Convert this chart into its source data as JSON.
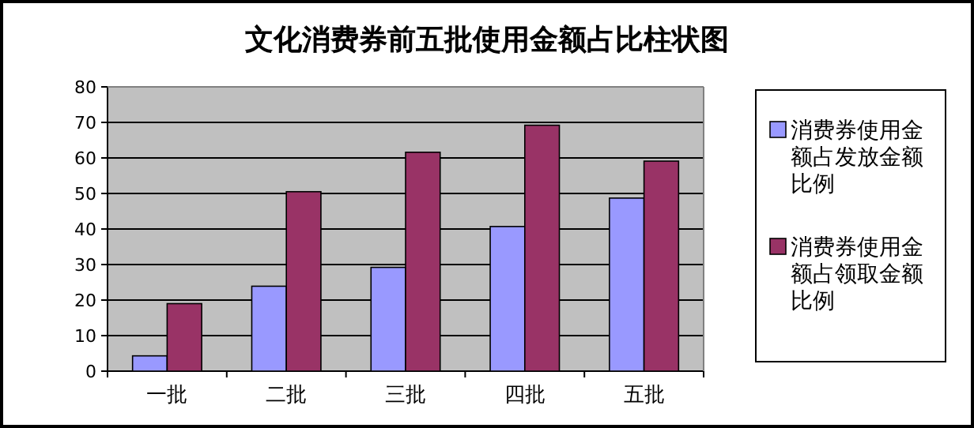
{
  "chart_data": {
    "type": "bar",
    "title": "文化消费券前五批使用金额占比柱状图",
    "categories": [
      "一批",
      "二批",
      "三批",
      "四批",
      "五批"
    ],
    "series": [
      {
        "name": "消费券使用金额占发放金额比例",
        "color": "#9999ff",
        "values": [
          4.3,
          23.9,
          29.2,
          40.7,
          48.7
        ]
      },
      {
        "name": "消费券使用金额占领取金额比例",
        "color": "#993366",
        "values": [
          19.0,
          50.5,
          61.6,
          69.2,
          59.1
        ]
      }
    ],
    "ylim": [
      0,
      80
    ],
    "yticks": [
      0,
      10,
      20,
      30,
      40,
      50,
      60,
      70,
      80
    ],
    "grid": "y",
    "legend": "right"
  }
}
